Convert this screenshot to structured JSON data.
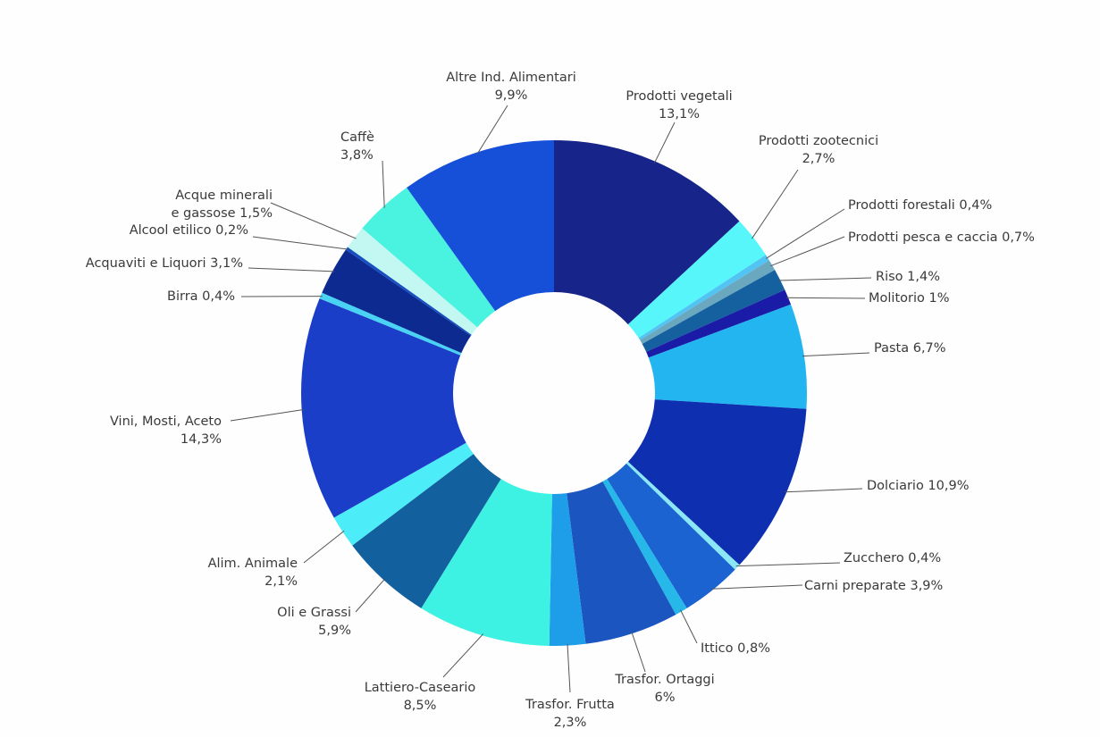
{
  "chart_data": {
    "type": "pie",
    "subtype": "donut",
    "title": "",
    "start": "top, clockwise",
    "slices": [
      {
        "label": "Prodotti vegetali",
        "value": 13.1,
        "text": [
          "Prodotti vegetali",
          "13,1%"
        ],
        "color": "#17258a"
      },
      {
        "label": "Prodotti zootecnici",
        "value": 2.7,
        "text": [
          "Prodotti zootecnici",
          "2,7%"
        ],
        "color": "#56f6fb"
      },
      {
        "label": "Prodotti forestali",
        "value": 0.4,
        "text": [
          "Prodotti forestali 0,4%"
        ],
        "color": "#52c4f4"
      },
      {
        "label": "Prodotti pesca e caccia",
        "value": 0.7,
        "text": [
          "Prodotti pesca e caccia 0,7%"
        ],
        "color": "#6aa8c0"
      },
      {
        "label": "Riso",
        "value": 1.4,
        "text": [
          "Riso 1,4%"
        ],
        "color": "#15609e"
      },
      {
        "label": "Molitorio",
        "value": 1.0,
        "text": [
          "Molitorio 1%"
        ],
        "color": "#1a1ca8"
      },
      {
        "label": "Pasta",
        "value": 6.7,
        "text": [
          "Pasta 6,7%"
        ],
        "color": "#22b5f0"
      },
      {
        "label": "Dolciario",
        "value": 10.9,
        "text": [
          "Dolciario 10,9%"
        ],
        "color": "#0e30b0"
      },
      {
        "label": "Zucchero",
        "value": 0.4,
        "text": [
          "Zucchero 0,4%"
        ],
        "color": "#8ae8f6"
      },
      {
        "label": "Carni preparate",
        "value": 3.9,
        "text": [
          "Carni preparate 3,9%"
        ],
        "color": "#1a63d0"
      },
      {
        "label": "Ittico",
        "value": 0.8,
        "text": [
          "Ittico 0,8%"
        ],
        "color": "#25b8e8"
      },
      {
        "label": "Trasfor. Ortaggi",
        "value": 6.0,
        "text": [
          "Trasfor. Ortaggi",
          "6%"
        ],
        "color": "#1b55c0"
      },
      {
        "label": "Trasfor. Frutta",
        "value": 2.3,
        "text": [
          "Trasfor. Frutta",
          "2,3%"
        ],
        "color": "#1e9de8"
      },
      {
        "label": "Lattiero-Caseario",
        "value": 8.5,
        "text": [
          "Lattiero-Caseario",
          "8,5%"
        ],
        "color": "#3df2e2"
      },
      {
        "label": "Oli e Grassi",
        "value": 5.9,
        "text": [
          "Oli e Grassi",
          "5,9%"
        ],
        "color": "#13609e"
      },
      {
        "label": "Alim. Animale",
        "value": 2.1,
        "text": [
          "Alim. Animale",
          "2,1%"
        ],
        "color": "#4cecf8"
      },
      {
        "label": "Vini, Mosti, Aceto",
        "value": 14.3,
        "text": [
          "Vini, Mosti, Aceto",
          "14,3%"
        ],
        "color": "#1a3ec8"
      },
      {
        "label": "Birra",
        "value": 0.4,
        "text": [
          "Birra 0,4%"
        ],
        "color": "#48d2f4"
      },
      {
        "label": "Acquaviti e Liquori",
        "value": 3.1,
        "text": [
          "Acquaviti e Liquori 3,1%"
        ],
        "color": "#0d2a90"
      },
      {
        "label": "Alcool etilico",
        "value": 0.2,
        "text": [
          "Alcool etilico 0,2%"
        ],
        "color": "#1650c0"
      },
      {
        "label": "Acque minerali e gassose",
        "value": 1.5,
        "text": [
          "Acque minerali",
          "e gassose 1,5%"
        ],
        "color": "#c2f7f2"
      },
      {
        "label": "Caffè",
        "value": 3.8,
        "text": [
          "Caffè",
          "3,8%"
        ],
        "color": "#4af2e0"
      },
      {
        "label": "Altre Ind. Alimentari",
        "value": 9.9,
        "text": [
          "Altre Ind. Alimentari",
          "9,9%"
        ],
        "color": "#1650d8"
      }
    ]
  }
}
